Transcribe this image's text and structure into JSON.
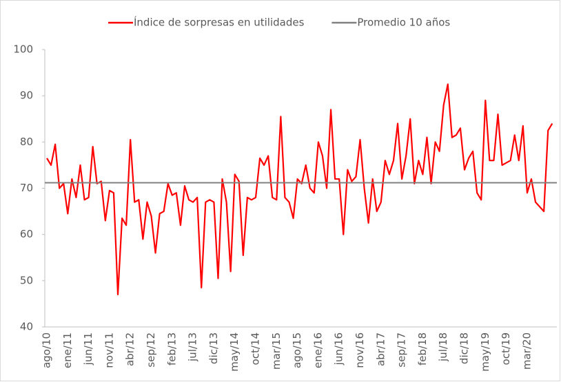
{
  "chart_data": {
    "type": "line",
    "categories": [
      "ago/10",
      null,
      null,
      null,
      null,
      "ene/11",
      null,
      null,
      null,
      null,
      "jun/11",
      null,
      null,
      null,
      null,
      "nov/11",
      null,
      null,
      null,
      null,
      "abr/12",
      null,
      null,
      null,
      null,
      "sep/12",
      null,
      null,
      null,
      null,
      "feb/13",
      null,
      null,
      null,
      null,
      "jul/13",
      null,
      null,
      null,
      null,
      "dic/13",
      null,
      null,
      null,
      null,
      "may/14",
      null,
      null,
      null,
      null,
      "oct/14",
      null,
      null,
      null,
      null,
      "mar/15",
      null,
      null,
      null,
      null,
      "ago/15",
      null,
      null,
      null,
      null,
      "ene/16",
      null,
      null,
      null,
      null,
      "jun/16",
      null,
      null,
      null,
      null,
      "nov/16",
      null,
      null,
      null,
      null,
      "abr/17",
      null,
      null,
      null,
      null,
      "sep/17",
      null,
      null,
      null,
      null,
      "feb/18",
      null,
      null,
      null,
      null,
      "jul/18",
      null,
      null,
      null,
      null,
      "dic/18",
      null,
      null,
      null,
      null,
      "may/19",
      null,
      null,
      null,
      null,
      "oct/19",
      null,
      null,
      null,
      null,
      "mar/20",
      null,
      null,
      null,
      null,
      null,
      null
    ],
    "series": [
      {
        "name": "Índice de sorpresas en utilidades",
        "color": "#ff0000",
        "values": [
          76.5,
          75,
          79.5,
          70,
          71,
          64.5,
          72,
          68,
          75,
          67.5,
          68,
          79,
          71,
          71.5,
          63,
          69.5,
          69,
          47,
          63.5,
          62,
          80.5,
          67,
          67.5,
          59,
          67,
          64,
          56,
          64.5,
          65,
          71,
          68.5,
          69,
          62,
          70.5,
          67.5,
          67,
          68,
          48.5,
          67,
          67.5,
          67,
          50.5,
          72,
          67,
          52,
          73,
          71.5,
          55.5,
          68,
          67.5,
          68,
          76.5,
          75,
          77,
          68,
          67.5,
          85.5,
          68,
          67,
          63.5,
          72,
          71,
          75,
          70,
          69,
          80,
          77,
          70,
          87,
          72,
          72,
          60,
          74,
          71.5,
          72.5,
          80.5,
          70,
          62.5,
          72,
          65,
          67,
          76,
          73,
          76,
          84,
          72,
          77,
          85,
          71,
          76,
          73,
          81,
          71,
          80,
          78,
          88,
          92.5,
          81,
          81.5,
          83,
          74,
          76.5,
          78,
          69,
          67.5,
          89,
          76,
          76,
          86,
          75,
          75.5,
          76,
          81.5,
          76,
          83.5,
          69,
          72,
          67,
          66,
          65,
          82.5,
          84
        ]
      },
      {
        "name": "Promedio 10 años",
        "color": "#808080",
        "value": 71.2
      }
    ],
    "ylim": [
      40,
      100
    ],
    "yticks": [
      40,
      50,
      60,
      70,
      80,
      90,
      100
    ],
    "grid": false,
    "legend": "top"
  }
}
